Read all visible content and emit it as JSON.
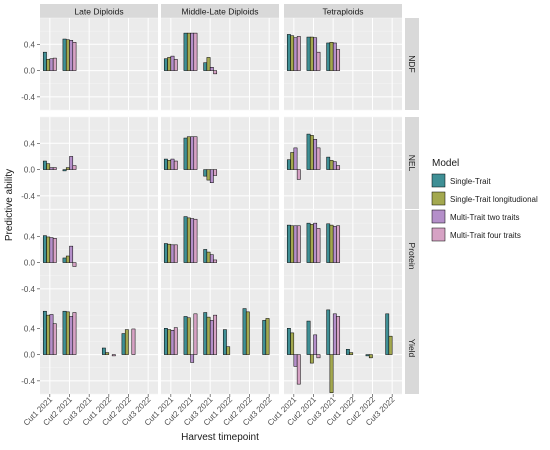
{
  "chart_data": {
    "type": "bar",
    "xlabel": "Harvest timepoint",
    "ylabel": "Predictive ability",
    "ylim": [
      -0.6,
      0.8
    ],
    "y_ticks": [
      -0.4,
      0.0,
      0.4
    ],
    "grid": true,
    "legend_position": "right",
    "legend_title": "Model",
    "categories": [
      "Cut1 2021",
      "Cut2 2021",
      "Cut3 2021",
      "Cut1 2022",
      "Cut2 2022",
      "Cut3 2022"
    ],
    "columns": [
      "Late Diploids",
      "Middle-Late Diploids",
      "Tetraploids"
    ],
    "rows": [
      "NDF",
      "NEL",
      "Protein",
      "Yield"
    ],
    "series": [
      {
        "name": "Single-Trait",
        "color": "#3f8f95"
      },
      {
        "name": "Single-Trait longitudional",
        "color": "#a3a84f"
      },
      {
        "name": "Multi-Trait two traits",
        "color": "#b48fc9"
      },
      {
        "name": "Multi-Trait four traits",
        "color": "#d6a2c4"
      }
    ],
    "panels": [
      {
        "column": "Late Diploids",
        "row": "NDF",
        "bars": [
          {
            "category": "Cut1 2021",
            "values": [
              0.28,
              0.17,
              0.18,
              0.19
            ]
          },
          {
            "category": "Cut2 2021",
            "values": [
              0.48,
              0.47,
              0.46,
              0.43
            ]
          }
        ]
      },
      {
        "column": "Middle-Late Diploids",
        "row": "NDF",
        "bars": [
          {
            "category": "Cut1 2021",
            "values": [
              0.18,
              0.2,
              0.22,
              0.17
            ]
          },
          {
            "category": "Cut2 2021",
            "values": [
              0.57,
              0.57,
              0.57,
              0.57
            ]
          },
          {
            "category": "Cut3 2021",
            "values": [
              0.12,
              0.2,
              0.05,
              -0.05
            ]
          }
        ]
      },
      {
        "column": "Tetraploids",
        "row": "NDF",
        "bars": [
          {
            "category": "Cut1 2021",
            "values": [
              0.55,
              0.53,
              0.5,
              0.52
            ]
          },
          {
            "category": "Cut2 2021",
            "values": [
              0.51,
              0.51,
              0.5,
              0.28
            ]
          },
          {
            "category": "Cut3 2021",
            "values": [
              0.42,
              0.43,
              0.42,
              0.32
            ]
          }
        ]
      },
      {
        "column": "Late Diploids",
        "row": "NEL",
        "bars": [
          {
            "category": "Cut1 2021",
            "values": [
              0.13,
              0.09,
              0.03,
              0.03
            ]
          },
          {
            "category": "Cut2 2021",
            "values": [
              -0.02,
              0.03,
              0.2,
              0.06
            ]
          }
        ]
      },
      {
        "column": "Middle-Late Diploids",
        "row": "NEL",
        "bars": [
          {
            "category": "Cut1 2021",
            "values": [
              0.16,
              0.14,
              0.16,
              0.13
            ]
          },
          {
            "category": "Cut2 2021",
            "values": [
              0.48,
              0.5,
              0.5,
              0.5
            ]
          },
          {
            "category": "Cut3 2021",
            "values": [
              -0.1,
              -0.16,
              -0.2,
              -0.09
            ]
          }
        ]
      },
      {
        "column": "Tetraploids",
        "row": "NEL",
        "bars": [
          {
            "category": "Cut1 2021",
            "values": [
              0.15,
              0.26,
              0.33,
              -0.15
            ]
          },
          {
            "category": "Cut2 2021",
            "values": [
              0.54,
              0.52,
              0.46,
              0.33
            ]
          },
          {
            "category": "Cut3 2021",
            "values": [
              0.19,
              0.14,
              0.12,
              0.06
            ]
          }
        ]
      },
      {
        "column": "Late Diploids",
        "row": "Protein",
        "bars": [
          {
            "category": "Cut1 2021",
            "values": [
              0.41,
              0.39,
              0.38,
              0.37
            ]
          },
          {
            "category": "Cut2 2021",
            "values": [
              0.07,
              0.1,
              0.25,
              -0.06
            ]
          }
        ]
      },
      {
        "column": "Middle-Late Diploids",
        "row": "Protein",
        "bars": [
          {
            "category": "Cut1 2021",
            "values": [
              0.29,
              0.28,
              0.27,
              0.27
            ]
          },
          {
            "category": "Cut2 2021",
            "values": [
              0.7,
              0.68,
              0.67,
              0.66
            ]
          },
          {
            "category": "Cut3 2021",
            "values": [
              0.2,
              0.16,
              0.12,
              0.04
            ]
          }
        ]
      },
      {
        "column": "Tetraploids",
        "row": "Protein",
        "bars": [
          {
            "category": "Cut1 2021",
            "values": [
              0.57,
              0.56,
              0.56,
              0.56
            ]
          },
          {
            "category": "Cut2 2021",
            "values": [
              0.6,
              0.58,
              0.6,
              0.52
            ]
          },
          {
            "category": "Cut3 2021",
            "values": [
              0.59,
              0.57,
              0.55,
              0.56
            ]
          }
        ]
      },
      {
        "column": "Late Diploids",
        "row": "Yield",
        "bars": [
          {
            "category": "Cut1 2021",
            "values": [
              0.66,
              0.6,
              0.61,
              0.47
            ]
          },
          {
            "category": "Cut2 2021",
            "values": [
              0.66,
              0.65,
              0.58,
              0.64
            ]
          },
          {
            "category": "Cut1 2022",
            "values": [
              0.1,
              0.03,
              null,
              -0.02
            ]
          },
          {
            "category": "Cut2 2022",
            "values": [
              0.32,
              0.38,
              null,
              0.39
            ]
          }
        ]
      },
      {
        "column": "Middle-Late Diploids",
        "row": "Yield",
        "bars": [
          {
            "category": "Cut1 2021",
            "values": [
              0.4,
              0.38,
              0.37,
              0.41
            ]
          },
          {
            "category": "Cut2 2021",
            "values": [
              0.58,
              0.56,
              -0.12,
              0.62
            ]
          },
          {
            "category": "Cut3 2021",
            "values": [
              0.64,
              0.57,
              0.52,
              0.6
            ]
          },
          {
            "category": "Cut1 2022",
            "values": [
              0.38,
              0.12,
              null,
              null
            ]
          },
          {
            "category": "Cut2 2022",
            "values": [
              0.7,
              0.65,
              null,
              null
            ]
          },
          {
            "category": "Cut3 2022",
            "values": [
              0.52,
              0.55,
              null,
              null
            ]
          }
        ]
      },
      {
        "column": "Tetraploids",
        "row": "Yield",
        "bars": [
          {
            "category": "Cut1 2021",
            "values": [
              0.4,
              0.33,
              -0.18,
              -0.45
            ]
          },
          {
            "category": "Cut2 2021",
            "values": [
              0.51,
              -0.13,
              0.3,
              -0.05
            ]
          },
          {
            "category": "Cut3 2021",
            "values": [
              0.68,
              -0.58,
              0.62,
              0.58
            ]
          },
          {
            "category": "Cut1 2022",
            "values": [
              0.08,
              0.03,
              null,
              null
            ]
          },
          {
            "category": "Cut2 2022",
            "values": [
              -0.02,
              -0.05,
              null,
              null
            ]
          },
          {
            "category": "Cut3 2022",
            "values": [
              0.62,
              0.28,
              null,
              null
            ]
          }
        ]
      }
    ]
  }
}
